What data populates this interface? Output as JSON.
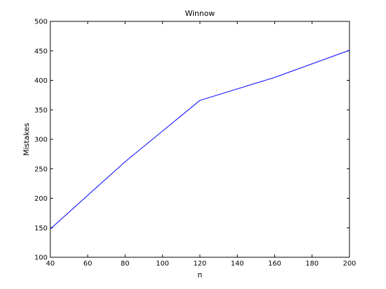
{
  "chart_data": {
    "type": "line",
    "title": "Winnow",
    "xlabel": "n",
    "ylabel": "Mistakes",
    "xlim": [
      40,
      200
    ],
    "ylim": [
      100,
      500
    ],
    "xticks": [
      40,
      60,
      80,
      100,
      120,
      140,
      160,
      180,
      200
    ],
    "yticks": [
      100,
      150,
      200,
      250,
      300,
      350,
      400,
      450,
      500
    ],
    "grid": false,
    "legend": null,
    "series": [
      {
        "color": "#0000ff",
        "x": [
          40,
          80,
          120,
          160,
          200
        ],
        "y": [
          148,
          262,
          366,
          405,
          451
        ]
      }
    ]
  }
}
